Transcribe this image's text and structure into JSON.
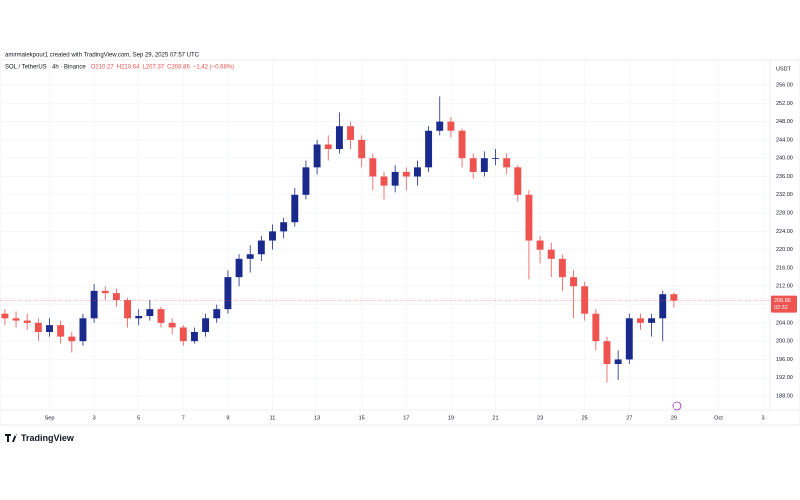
{
  "chart_data": {
    "type": "candlestick",
    "credit": "amirmalekpour1 created with TradingView.com, Sep 29, 2025 07:57 UTC",
    "title": "SOL / TetherUS · 4h · Binance",
    "legend": [
      "O210.27",
      "H210.64",
      "L207.37",
      "C208.86",
      "−1.42 (−0.68%)"
    ],
    "currency": "USDT",
    "last_price": 208.86,
    "countdown": "02:32",
    "brand": "TradingView",
    "up_color": "#1a2a8c",
    "down_color": "#ef5350",
    "grid": true,
    "x": [
      -1,
      -0.5,
      0,
      0.5,
      1,
      1.5,
      2,
      2.5,
      3,
      3.5,
      4,
      4.5,
      5,
      5.5,
      6,
      6.5,
      7,
      7.5,
      8,
      8.5,
      9,
      9.5,
      10,
      10.5,
      11,
      11.5,
      12,
      12.5,
      13,
      13.5,
      14,
      14.5,
      15,
      15.5,
      16,
      16.5,
      17,
      17.5,
      18,
      18.5,
      19,
      19.5,
      20,
      20.5,
      21,
      21.5,
      22,
      22.5,
      23,
      23.5,
      24,
      24.5,
      25,
      25.5,
      26,
      26.5,
      27,
      27.5,
      28,
      28.5,
      29
    ],
    "open": [
      206,
      205,
      204.5,
      204,
      202,
      203.5,
      201,
      200,
      205,
      211,
      210.5,
      209,
      205,
      205.5,
      207,
      204,
      203,
      200,
      202,
      205,
      207,
      214,
      218,
      219,
      222,
      224,
      226,
      232,
      238,
      243,
      242,
      247,
      244,
      240,
      236,
      234,
      237,
      236,
      238,
      246,
      248,
      246,
      240,
      237,
      240,
      240,
      238,
      232,
      222,
      220,
      218,
      214,
      212,
      206,
      200,
      195,
      196,
      205,
      204,
      205,
      210.27
    ],
    "high": [
      207,
      206.5,
      206,
      205,
      205,
      204.5,
      202,
      206,
      212.5,
      212,
      211.5,
      209.5,
      207,
      209,
      207.5,
      205,
      203.5,
      203,
      206,
      208,
      215.5,
      219,
      221,
      223,
      225.5,
      227,
      233.5,
      239.5,
      244,
      245,
      250,
      248,
      245,
      241,
      237,
      238.5,
      238,
      239.5,
      247,
      253.5,
      249,
      246.5,
      241,
      241.5,
      242,
      241,
      238.5,
      233,
      223,
      221.5,
      219,
      215.5,
      213,
      207,
      201,
      198,
      206,
      206,
      206,
      211,
      210.64
    ],
    "low": [
      203.5,
      203,
      202.5,
      200,
      201,
      199.5,
      197.5,
      199,
      204,
      209,
      207.5,
      203,
      203.5,
      204.5,
      203,
      201.5,
      199,
      199.5,
      201,
      204,
      206,
      212,
      215,
      217.5,
      220,
      222.5,
      225,
      231,
      236.5,
      239.5,
      241,
      242,
      238,
      233,
      231,
      232.5,
      233,
      234,
      237,
      245,
      244.5,
      238,
      235.5,
      236,
      238.5,
      236.5,
      230.5,
      213.5,
      217,
      214,
      211,
      205,
      204.5,
      198,
      191,
      191.5,
      195,
      202.5,
      201,
      200,
      207.37
    ],
    "close": [
      205,
      204.5,
      204,
      202,
      203.5,
      201,
      200,
      205,
      211,
      210.5,
      209,
      205,
      205.5,
      207,
      204,
      203,
      200,
      202,
      205,
      207,
      214,
      218,
      219,
      222,
      224,
      226,
      232,
      238,
      243,
      242,
      247,
      244,
      240,
      236,
      234,
      237,
      236,
      238,
      246,
      248,
      246,
      240,
      237,
      240,
      240,
      238,
      232,
      222,
      220,
      218,
      214,
      212,
      206,
      200,
      195,
      196,
      205,
      204,
      205,
      210.27,
      208.86
    ],
    "xlim": [
      -1.22,
      33.31
    ],
    "ylim": [
      184.95,
      261.47
    ],
    "xticks": [
      {
        "value": 1,
        "label": "Sep"
      },
      3,
      5,
      7,
      9,
      11,
      13,
      15,
      17,
      19,
      21,
      23,
      25,
      27,
      29,
      {
        "value": 31,
        "label": "Oct"
      },
      {
        "value": 33,
        "label": "3"
      }
    ],
    "yticks": [
      {
        "value": 188,
        "label": "188.00"
      },
      {
        "value": 192,
        "label": "192.00"
      },
      {
        "value": 196,
        "label": "196.00"
      },
      {
        "value": 200,
        "label": "200.00"
      },
      {
        "value": 204,
        "label": "204.00"
      },
      {
        "value": 208,
        "label": "208.00"
      },
      {
        "value": 212,
        "label": "212.00"
      },
      {
        "value": 216,
        "label": "216.00"
      },
      {
        "value": 220,
        "label": "220.00"
      },
      {
        "value": 224,
        "label": "224.00"
      },
      {
        "value": 228,
        "label": "228.00"
      },
      {
        "value": 232,
        "label": "232.00"
      },
      {
        "value": 236,
        "label": "236.00"
      },
      {
        "value": 240,
        "label": "240.00"
      },
      {
        "value": 244,
        "label": "244.00"
      },
      {
        "value": 248,
        "label": "248.00"
      },
      {
        "value": 252,
        "label": "252.00"
      },
      {
        "value": 256,
        "label": "256.00"
      }
    ]
  }
}
